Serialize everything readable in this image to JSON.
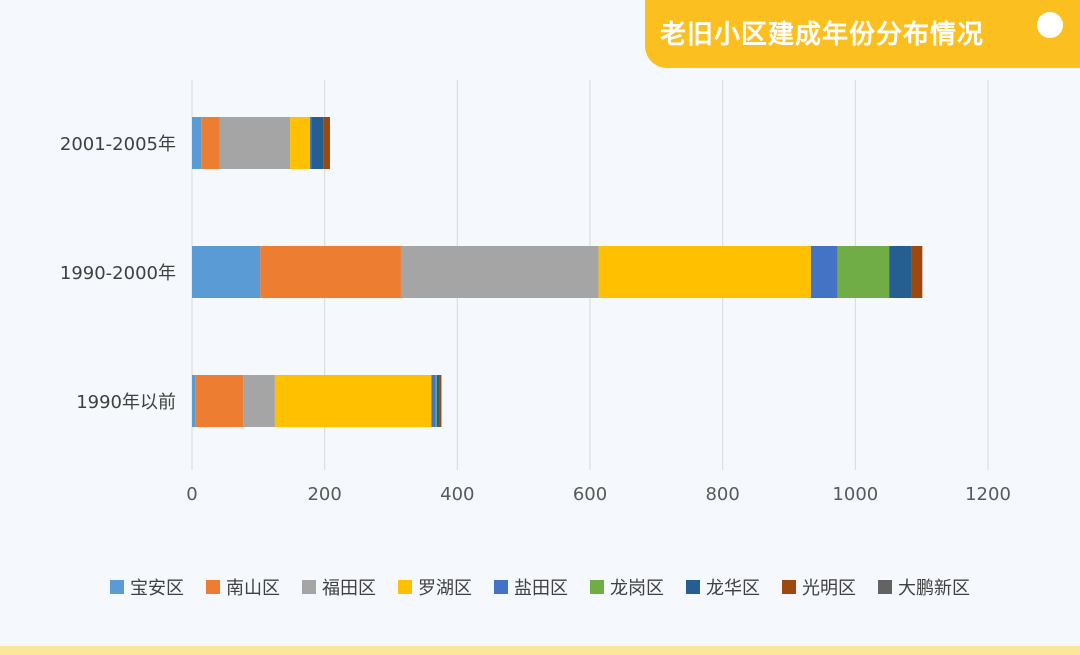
{
  "title": "老旧小区建成年份分布情况",
  "chart_data": {
    "type": "bar",
    "orientation": "horizontal",
    "stacked": true,
    "categories": [
      "2001-2005年",
      "1990-2000年",
      "1990年以前"
    ],
    "xlim": [
      0,
      1200
    ],
    "xticks": [
      0,
      200,
      400,
      600,
      800,
      1000,
      1200
    ],
    "grid": true,
    "legend_position": "bottom",
    "series": [
      {
        "name": "宝安区",
        "color": "#5b9bd5",
        "values": [
          14,
          103,
          5
        ]
      },
      {
        "name": "南山区",
        "color": "#ed7d31",
        "values": [
          28,
          212,
          72
        ]
      },
      {
        "name": "福田区",
        "color": "#a5a5a5",
        "values": [
          106,
          298,
          48
        ]
      },
      {
        "name": "罗湖区",
        "color": "#ffc000",
        "values": [
          30,
          320,
          236
        ]
      },
      {
        "name": "盐田区",
        "color": "#4472c4",
        "values": [
          2,
          40,
          6
        ]
      },
      {
        "name": "龙岗区",
        "color": "#70ad47",
        "values": [
          0,
          78,
          2
        ]
      },
      {
        "name": "龙华区",
        "color": "#255e91",
        "values": [
          18,
          33,
          4
        ]
      },
      {
        "name": "光明区",
        "color": "#9e480e",
        "values": [
          10,
          17,
          3
        ]
      },
      {
        "name": "大鹏新区",
        "color": "#636363",
        "values": [
          0,
          0,
          0
        ]
      }
    ]
  }
}
